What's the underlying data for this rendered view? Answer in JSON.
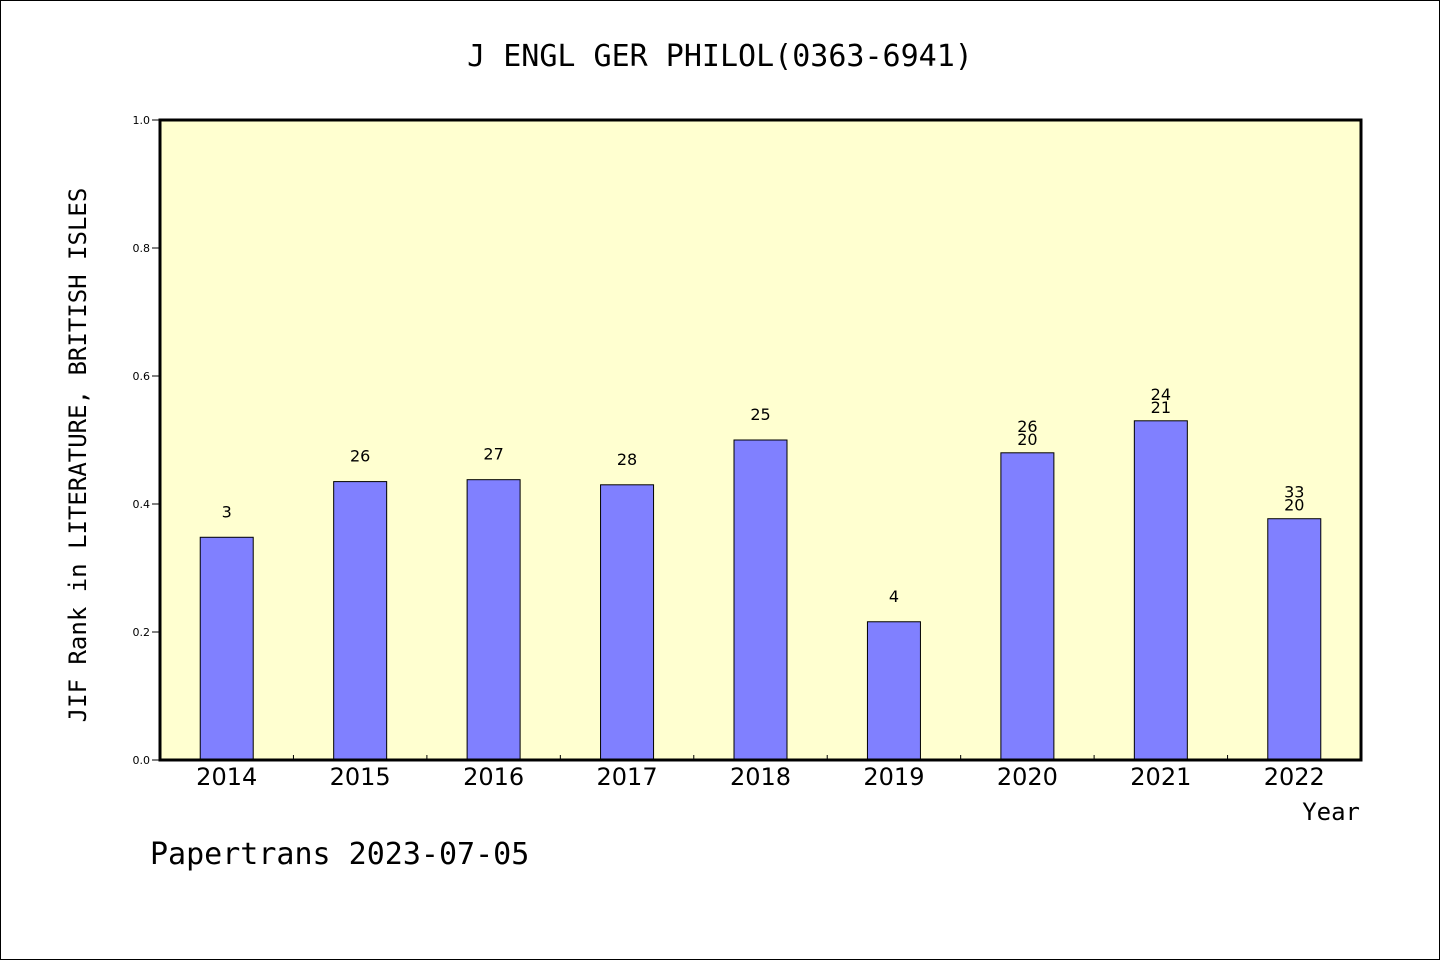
{
  "chart_data": {
    "type": "bar",
    "title": "J ENGL GER PHILOL(0363-6941)",
    "xlabel": "Year",
    "ylabel": "JIF Rank in LITERATURE, BRITISH ISLES",
    "ylim": [
      0,
      1.0
    ],
    "yticks": [
      "0.0",
      "0.2",
      "0.4",
      "0.6",
      "0.8",
      "1.0"
    ],
    "categories": [
      "2014",
      "2015",
      "2016",
      "2017",
      "2018",
      "2019",
      "2020",
      "2021",
      "2022"
    ],
    "values": [
      0.348,
      0.435,
      0.438,
      0.43,
      0.5,
      0.216,
      0.48,
      0.53,
      0.377
    ],
    "bar_labels": [
      [
        "3"
      ],
      [
        "26"
      ],
      [
        "27"
      ],
      [
        "28"
      ],
      [
        "25"
      ],
      [
        "4"
      ],
      [
        "26",
        "20"
      ],
      [
        "24",
        "21"
      ],
      [
        "33",
        "20"
      ]
    ],
    "grid": false,
    "colors": {
      "bar": "#8080ff",
      "plot_background": "#ffffd0",
      "axis": "#000000"
    }
  },
  "footer": {
    "credit": "Papertrans 2023-07-05"
  }
}
